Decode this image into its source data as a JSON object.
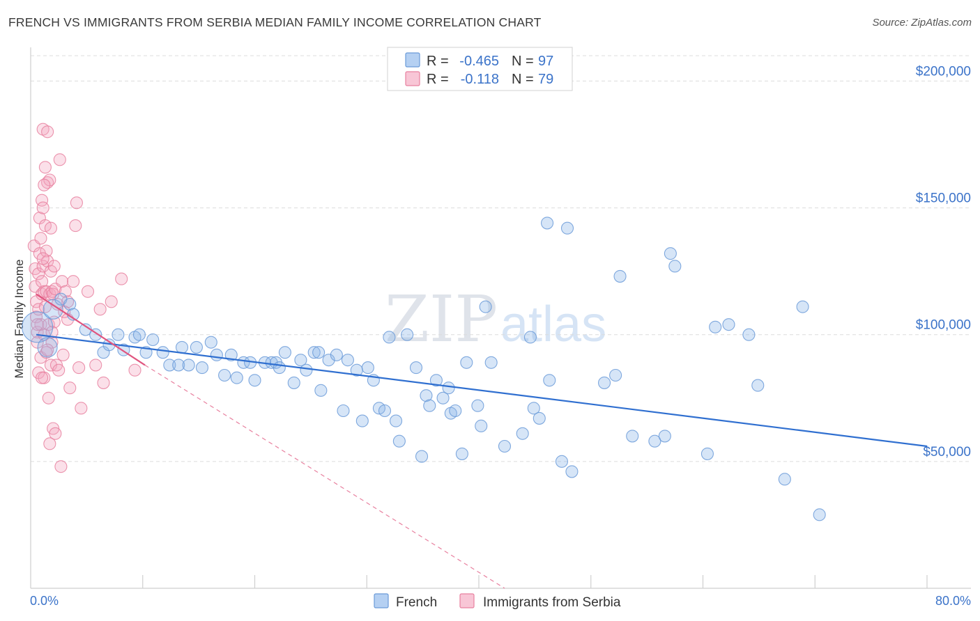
{
  "title": "FRENCH VS IMMIGRANTS FROM SERBIA MEDIAN FAMILY INCOME CORRELATION CHART",
  "source": "Source: ZipAtlas.com",
  "watermark": {
    "part1": "ZIP",
    "part2": "atlas"
  },
  "legend_stats": [
    {
      "r_label": "R =",
      "r_value": "-0.465",
      "n_label": "N =",
      "n_value": "97"
    },
    {
      "r_label": "R =",
      "r_value": "-0.118",
      "n_label": "N =",
      "n_value": "79"
    }
  ],
  "chart_data": {
    "type": "scatter",
    "title": "FRENCH VS IMMIGRANTS FROM SERBIA MEDIAN FAMILY INCOME CORRELATION CHART",
    "xlabel": "",
    "ylabel": "Median Family Income",
    "xlim": [
      0,
      80
    ],
    "ylim": [
      0,
      210000
    ],
    "x_tick_labels": [
      "0.0%",
      "80.0%"
    ],
    "y_ticks": [
      50000,
      100000,
      150000,
      200000
    ],
    "y_tick_labels": [
      "$50,000",
      "$100,000",
      "$150,000",
      "$200,000"
    ],
    "grid": true,
    "legend_position": "top-center",
    "series": [
      {
        "name": "French",
        "color": "#8ab4e8",
        "edge": "#6a9ad8",
        "r": -0.465,
        "n": 97,
        "trend": {
          "x": [
            0.5,
            80
          ],
          "y": [
            100000,
            56000
          ]
        },
        "points": [
          [
            0.6,
            103000,
            3
          ],
          [
            1.5,
            95000,
            2
          ],
          [
            2,
            110000,
            2
          ],
          [
            2.7,
            114000,
            1
          ],
          [
            3.5,
            112000,
            1
          ],
          [
            3.8,
            108000,
            1
          ],
          [
            4.9,
            102000,
            1
          ],
          [
            5.8,
            100000,
            1
          ],
          [
            6.5,
            93000,
            1
          ],
          [
            7,
            96000,
            1
          ],
          [
            7.8,
            100000,
            1
          ],
          [
            8.3,
            94000,
            1
          ],
          [
            9.3,
            99000,
            1
          ],
          [
            9.7,
            100000,
            1
          ],
          [
            10.3,
            93000,
            1
          ],
          [
            10.9,
            98000,
            1
          ],
          [
            11.8,
            93000,
            1
          ],
          [
            12.4,
            88000,
            1
          ],
          [
            13.2,
            88000,
            1
          ],
          [
            13.5,
            95000,
            1
          ],
          [
            14.1,
            88000,
            1
          ],
          [
            14.8,
            95000,
            1
          ],
          [
            15.3,
            87000,
            1
          ],
          [
            16.1,
            97000,
            1
          ],
          [
            16.6,
            92000,
            1
          ],
          [
            17.3,
            84000,
            1
          ],
          [
            17.9,
            92000,
            1
          ],
          [
            18.4,
            83000,
            1
          ],
          [
            19,
            89000,
            1
          ],
          [
            19.6,
            89000,
            1
          ],
          [
            20,
            82000,
            1
          ],
          [
            20.9,
            89000,
            1
          ],
          [
            21.5,
            89000,
            1
          ],
          [
            21.9,
            89000,
            1
          ],
          [
            22.2,
            87000,
            1
          ],
          [
            22.7,
            93000,
            1
          ],
          [
            23.5,
            81000,
            1
          ],
          [
            24.1,
            90000,
            1
          ],
          [
            24.6,
            86000,
            1
          ],
          [
            25.3,
            93000,
            1
          ],
          [
            25.7,
            93000,
            1
          ],
          [
            25.9,
            78000,
            1
          ],
          [
            26.6,
            90000,
            1
          ],
          [
            27.3,
            92000,
            1
          ],
          [
            27.9,
            70000,
            1
          ],
          [
            28.3,
            90000,
            1
          ],
          [
            29.1,
            86000,
            1
          ],
          [
            29.6,
            66000,
            1
          ],
          [
            30.1,
            87000,
            1
          ],
          [
            30.6,
            82000,
            1
          ],
          [
            31.1,
            71000,
            1
          ],
          [
            31.6,
            70000,
            1
          ],
          [
            32,
            99000,
            1
          ],
          [
            32.6,
            66000,
            1
          ],
          [
            32.9,
            58000,
            1
          ],
          [
            33.6,
            100000,
            1
          ],
          [
            34.4,
            87000,
            1
          ],
          [
            34.9,
            52000,
            1
          ],
          [
            35.3,
            76000,
            1
          ],
          [
            35.6,
            72000,
            1
          ],
          [
            36.2,
            82000,
            1
          ],
          [
            36.8,
            75000,
            1
          ],
          [
            37.3,
            79000,
            1
          ],
          [
            37.5,
            69000,
            1
          ],
          [
            37.9,
            70000,
            1
          ],
          [
            38.5,
            53000,
            1
          ],
          [
            38.9,
            89000,
            1
          ],
          [
            39.9,
            72000,
            1
          ],
          [
            40.2,
            64000,
            1
          ],
          [
            40.6,
            111000,
            1
          ],
          [
            41.1,
            89000,
            1
          ],
          [
            42.3,
            56000,
            1
          ],
          [
            43.9,
            61000,
            1
          ],
          [
            44.6,
            99000,
            1
          ],
          [
            44.9,
            71000,
            1
          ],
          [
            45.4,
            67000,
            1
          ],
          [
            46.1,
            144000,
            1
          ],
          [
            46.3,
            82000,
            1
          ],
          [
            47.4,
            50000,
            1
          ],
          [
            47.9,
            142000,
            1
          ],
          [
            48.3,
            46000,
            1
          ],
          [
            51.2,
            81000,
            1
          ],
          [
            52.2,
            84000,
            1
          ],
          [
            52.6,
            123000,
            1
          ],
          [
            53.7,
            60000,
            1
          ],
          [
            55.7,
            58000,
            1
          ],
          [
            56.6,
            60000,
            1
          ],
          [
            57.1,
            132000,
            1
          ],
          [
            57.5,
            127000,
            1
          ],
          [
            60.4,
            53000,
            1
          ],
          [
            61.1,
            103000,
            1
          ],
          [
            62.3,
            104000,
            1
          ],
          [
            64.1,
            100000,
            1
          ],
          [
            64.9,
            80000,
            1
          ],
          [
            67.3,
            43000,
            1
          ],
          [
            68.9,
            111000,
            1
          ],
          [
            70.4,
            29000,
            1
          ]
        ]
      },
      {
        "name": "Immigrants from Serbia",
        "color": "#f4a7c0",
        "edge": "#e8809f",
        "r": -0.118,
        "n": 79,
        "trend": {
          "x": [
            0.5,
            10.2
          ],
          "y": [
            116000,
            88000
          ]
        },
        "trend_ext": {
          "x": [
            10.2,
            42.3
          ],
          "y": [
            88000,
            0
          ]
        },
        "points": [
          [
            0.3,
            135000,
            1
          ],
          [
            0.4,
            126000,
            1
          ],
          [
            0.4,
            119000,
            1
          ],
          [
            0.5,
            113000,
            1
          ],
          [
            0.5,
            107000,
            1
          ],
          [
            0.6,
            101000,
            1
          ],
          [
            0.6,
            97000,
            1
          ],
          [
            0.7,
            85000,
            1
          ],
          [
            0.7,
            124000,
            1
          ],
          [
            0.7,
            110000,
            1
          ],
          [
            0.8,
            146000,
            1
          ],
          [
            0.8,
            132000,
            1
          ],
          [
            0.9,
            104000,
            1
          ],
          [
            0.9,
            91000,
            1
          ],
          [
            1,
            153000,
            1
          ],
          [
            1,
            121000,
            1
          ],
          [
            1,
            116000,
            1
          ],
          [
            1.1,
            181000,
            1
          ],
          [
            1.1,
            150000,
            1
          ],
          [
            1.1,
            127000,
            1
          ],
          [
            1.2,
            117000,
            1
          ],
          [
            1.2,
            100000,
            1
          ],
          [
            1.2,
            83000,
            1
          ],
          [
            1.3,
            166000,
            1
          ],
          [
            1.3,
            143000,
            1
          ],
          [
            1.3,
            111000,
            1
          ],
          [
            1.4,
            117000,
            1
          ],
          [
            1.4,
            93000,
            1
          ],
          [
            1.5,
            180000,
            1
          ],
          [
            1.5,
            160000,
            1
          ],
          [
            1.5,
            129000,
            1
          ],
          [
            1.6,
            104000,
            1
          ],
          [
            1.6,
            75000,
            1
          ],
          [
            1.7,
            161000,
            1
          ],
          [
            1.7,
            116000,
            1
          ],
          [
            1.8,
            142000,
            1
          ],
          [
            1.8,
            125000,
            1
          ],
          [
            1.8,
            88000,
            1
          ],
          [
            1.9,
            117000,
            1
          ],
          [
            1.9,
            97000,
            1
          ],
          [
            2,
            116000,
            1
          ],
          [
            2,
            63000,
            1
          ],
          [
            2.1,
            105000,
            1
          ],
          [
            2.2,
            118000,
            1
          ],
          [
            2.3,
            88000,
            1
          ],
          [
            2.5,
            86000,
            1
          ],
          [
            2.6,
            169000,
            1
          ],
          [
            2.7,
            48000,
            1
          ],
          [
            2.8,
            121000,
            1
          ],
          [
            3.1,
            117000,
            1
          ],
          [
            3.3,
            113000,
            1
          ],
          [
            3.5,
            79000,
            1
          ],
          [
            3.8,
            121000,
            1
          ],
          [
            4,
            143000,
            1
          ],
          [
            4.1,
            152000,
            1
          ],
          [
            4.3,
            87000,
            1
          ],
          [
            4.5,
            71000,
            1
          ],
          [
            5.1,
            117000,
            1
          ],
          [
            5.8,
            88000,
            1
          ],
          [
            6.2,
            110000,
            1
          ],
          [
            6.5,
            81000,
            1
          ],
          [
            7.2,
            113000,
            1
          ],
          [
            8.1,
            122000,
            1
          ],
          [
            9.3,
            86000,
            1
          ],
          [
            0.6,
            104000,
            1
          ],
          [
            1.4,
            133000,
            1
          ],
          [
            2.1,
            127000,
            1
          ],
          [
            1.1,
            130000,
            1
          ],
          [
            1.9,
            101000,
            1
          ],
          [
            2.4,
            112000,
            1
          ],
          [
            0.9,
            138000,
            1
          ],
          [
            1.5,
            94000,
            1
          ],
          [
            2.9,
            92000,
            1
          ],
          [
            1.2,
            159000,
            1
          ],
          [
            3,
            109000,
            1
          ],
          [
            1.7,
            57000,
            1
          ],
          [
            2.2,
            61000,
            1
          ],
          [
            3.3,
            106000,
            1
          ],
          [
            1,
            83000,
            1
          ]
        ]
      }
    ]
  },
  "bottom_legend": [
    {
      "label": "French"
    },
    {
      "label": "Immigrants from Serbia"
    }
  ]
}
